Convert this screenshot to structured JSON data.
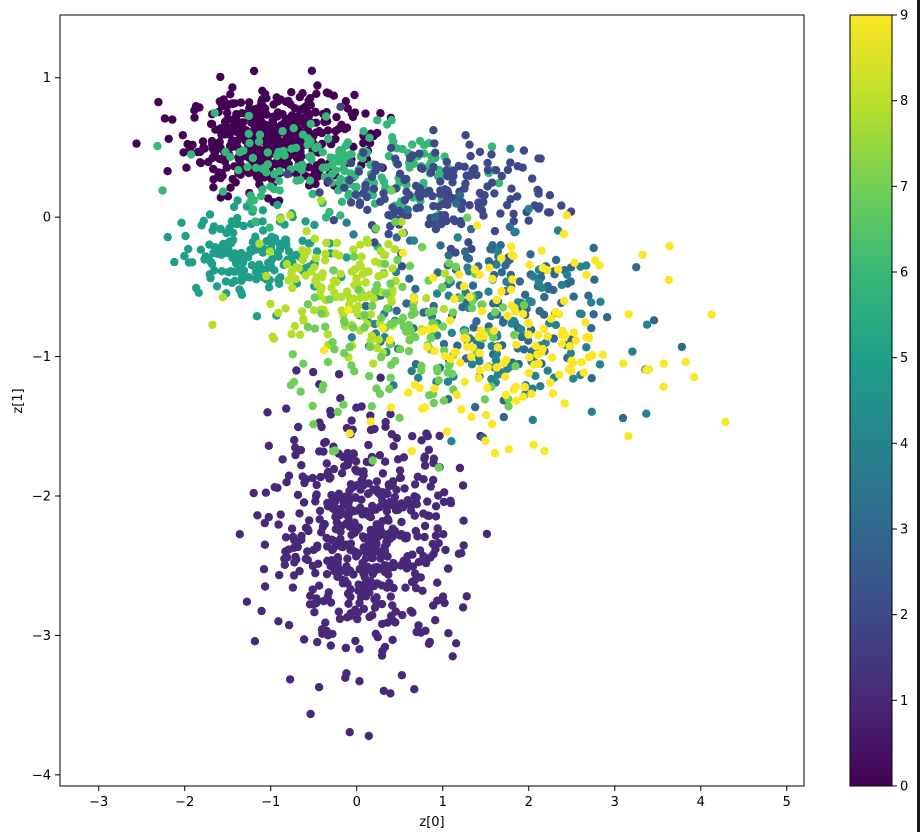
{
  "chart_data": {
    "type": "scatter",
    "title": "",
    "xlabel": "z[0]",
    "ylabel": "z[1]",
    "xlim": [
      -3.45,
      5.2
    ],
    "ylim": [
      -4.08,
      1.45
    ],
    "xticks": [
      -3,
      -2,
      -1,
      0,
      1,
      2,
      3,
      4,
      5
    ],
    "yticks": [
      -4,
      -3,
      -2,
      -1,
      0,
      1
    ],
    "grid": false,
    "legend": "none",
    "colorbar": {
      "label": "",
      "cmap": "viridis",
      "range": [
        0,
        9
      ],
      "ticks": [
        0,
        1,
        2,
        3,
        4,
        5,
        6,
        7,
        8,
        9
      ]
    },
    "point_color_by": "digit class 0-9",
    "clusters": [
      {
        "class": 0,
        "center": [
          -1.0,
          0.55
        ],
        "spread": [
          0.8,
          0.28
        ],
        "approx_points": 2500
      },
      {
        "class": 1,
        "center": [
          0.1,
          -2.3
        ],
        "spread": [
          0.9,
          0.7
        ],
        "approx_points": 2800
      },
      {
        "class": 2,
        "center": [
          1.0,
          0.15
        ],
        "spread": [
          1.0,
          0.3
        ],
        "approx_points": 900
      },
      {
        "class": 3,
        "center": [
          1.6,
          -0.6
        ],
        "spread": [
          1.1,
          0.55
        ],
        "approx_points": 700
      },
      {
        "class": 4,
        "center": [
          1.5,
          -0.8
        ],
        "spread": [
          1.3,
          0.6
        ],
        "approx_points": 600
      },
      {
        "class": 5,
        "center": [
          -1.2,
          -0.25
        ],
        "spread": [
          0.7,
          0.25
        ],
        "approx_points": 900
      },
      {
        "class": 6,
        "center": [
          -0.2,
          0.35
        ],
        "spread": [
          1.2,
          0.3
        ],
        "approx_points": 900
      },
      {
        "class": 7,
        "center": [
          0.7,
          -0.9
        ],
        "spread": [
          1.2,
          0.55
        ],
        "approx_points": 700
      },
      {
        "class": 8,
        "center": [
          -0.2,
          -0.5
        ],
        "spread": [
          0.9,
          0.4
        ],
        "approx_points": 700
      },
      {
        "class": 9,
        "center": [
          1.8,
          -0.9
        ],
        "spread": [
          1.3,
          0.55
        ],
        "approx_points": 800
      }
    ],
    "colors": [
      "#440154",
      "#482878",
      "#3e4989",
      "#31688e",
      "#26828e",
      "#1f9e89",
      "#35b779",
      "#6ece58",
      "#b5de2b",
      "#fde725"
    ]
  }
}
